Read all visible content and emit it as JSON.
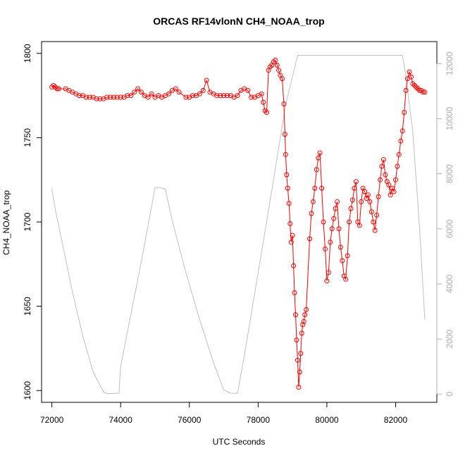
{
  "chart_data": {
    "type": "line",
    "title": "ORCAS RF14vlonN CH4_NOAA_trop",
    "xlabel": "UTC Seconds",
    "ylabel": "CH4_NOAA_trop",
    "xlim": [
      71700,
      83200
    ],
    "ylim": [
      1593,
      1807
    ],
    "y2lim": [
      -300,
      12800
    ],
    "x_ticks": [
      72000,
      74000,
      76000,
      78000,
      80000,
      82000
    ],
    "y_ticks": [
      1600,
      1650,
      1700,
      1750,
      1800
    ],
    "y2_ticks": [
      0,
      2000,
      4000,
      6000,
      8000,
      10000,
      12000
    ],
    "grid": false,
    "series": [
      {
        "color": "#ff0000",
        "axis": "left",
        "marker": "open-circle",
        "points": [
          [
            72000,
            1780
          ],
          [
            72050,
            1781
          ],
          [
            72100,
            1780
          ],
          [
            72150,
            1779
          ],
          [
            72200,
            1779
          ],
          [
            72400,
            1779
          ],
          [
            72500,
            1778
          ],
          [
            72600,
            1777
          ],
          [
            72700,
            1776
          ],
          [
            72800,
            1775
          ],
          [
            72900,
            1775
          ],
          [
            73000,
            1774
          ],
          [
            73100,
            1774
          ],
          [
            73200,
            1774
          ],
          [
            73300,
            1773
          ],
          [
            73400,
            1773
          ],
          [
            73500,
            1773
          ],
          [
            73600,
            1774
          ],
          [
            73700,
            1774
          ],
          [
            73800,
            1774
          ],
          [
            73900,
            1774
          ],
          [
            74000,
            1774
          ],
          [
            74100,
            1774
          ],
          [
            74200,
            1775
          ],
          [
            74300,
            1775
          ],
          [
            74400,
            1777
          ],
          [
            74500,
            1779
          ],
          [
            74600,
            1777
          ],
          [
            74700,
            1775
          ],
          [
            74800,
            1774
          ],
          [
            74900,
            1776
          ],
          [
            75000,
            1774
          ],
          [
            75100,
            1775
          ],
          [
            75200,
            1774
          ],
          [
            75300,
            1775
          ],
          [
            75400,
            1776
          ],
          [
            75500,
            1778
          ],
          [
            75600,
            1779
          ],
          [
            75700,
            1777
          ],
          [
            75900,
            1774
          ],
          [
            76000,
            1774
          ],
          [
            76100,
            1775
          ],
          [
            76200,
            1775
          ],
          [
            76300,
            1776
          ],
          [
            76400,
            1778
          ],
          [
            76500,
            1784
          ],
          [
            76600,
            1777
          ],
          [
            76700,
            1776
          ],
          [
            76800,
            1775
          ],
          [
            76900,
            1775
          ],
          [
            77000,
            1775
          ],
          [
            77100,
            1775
          ],
          [
            77200,
            1775
          ],
          [
            77300,
            1774
          ],
          [
            77400,
            1775
          ],
          [
            77500,
            1778
          ],
          [
            77600,
            1779
          ],
          [
            77700,
            1778
          ],
          [
            77800,
            1774
          ],
          [
            77900,
            1774
          ],
          [
            78000,
            1775
          ],
          [
            78100,
            1776
          ],
          [
            78150,
            1771
          ],
          [
            78200,
            1766
          ],
          [
            78250,
            1765
          ],
          [
            78300,
            1790
          ],
          [
            78350,
            1792
          ],
          [
            78400,
            1793
          ],
          [
            78450,
            1795
          ],
          [
            78500,
            1796
          ],
          [
            78550,
            1793
          ],
          [
            78600,
            1790
          ],
          [
            78650,
            1787
          ],
          [
            78700,
            1785
          ],
          [
            78750,
            1770
          ],
          [
            78780,
            1752
          ],
          [
            78800,
            1740
          ],
          [
            78830,
            1728
          ],
          [
            78860,
            1720
          ],
          [
            78900,
            1711
          ],
          [
            78930,
            1699
          ],
          [
            78960,
            1688
          ],
          [
            79000,
            1692
          ],
          [
            79030,
            1674
          ],
          [
            79060,
            1658
          ],
          [
            79090,
            1645
          ],
          [
            79120,
            1630
          ],
          [
            79150,
            1618
          ],
          [
            79180,
            1602
          ],
          [
            79210,
            1611
          ],
          [
            79240,
            1622
          ],
          [
            79270,
            1634
          ],
          [
            79300,
            1639
          ],
          [
            79330,
            1641
          ],
          [
            79360,
            1645
          ],
          [
            79400,
            1648
          ],
          [
            79500,
            1690
          ],
          [
            79550,
            1705
          ],
          [
            79600,
            1712
          ],
          [
            79650,
            1720
          ],
          [
            79700,
            1731
          ],
          [
            79750,
            1738
          ],
          [
            79800,
            1741
          ],
          [
            79850,
            1720
          ],
          [
            79900,
            1700
          ],
          [
            79950,
            1684
          ],
          [
            80000,
            1665
          ],
          [
            80050,
            1670
          ],
          [
            80100,
            1688
          ],
          [
            80150,
            1696
          ],
          [
            80200,
            1702
          ],
          [
            80250,
            1708
          ],
          [
            80300,
            1712
          ],
          [
            80350,
            1696
          ],
          [
            80400,
            1685
          ],
          [
            80450,
            1677
          ],
          [
            80500,
            1668
          ],
          [
            80550,
            1666
          ],
          [
            80600,
            1680
          ],
          [
            80650,
            1700
          ],
          [
            80700,
            1708
          ],
          [
            80750,
            1713
          ],
          [
            80800,
            1720
          ],
          [
            80850,
            1724
          ],
          [
            80900,
            1700
          ],
          [
            80950,
            1698
          ],
          [
            81000,
            1712
          ],
          [
            81050,
            1720
          ],
          [
            81100,
            1718
          ],
          [
            81150,
            1714
          ],
          [
            81200,
            1716
          ],
          [
            81250,
            1712
          ],
          [
            81300,
            1706
          ],
          [
            81350,
            1700
          ],
          [
            81400,
            1695
          ],
          [
            81450,
            1704
          ],
          [
            81500,
            1715
          ],
          [
            81550,
            1725
          ],
          [
            81600,
            1733
          ],
          [
            81650,
            1737
          ],
          [
            81700,
            1728
          ],
          [
            81750,
            1724
          ],
          [
            81800,
            1722
          ],
          [
            81850,
            1716
          ],
          [
            81900,
            1720
          ],
          [
            81950,
            1718
          ],
          [
            82000,
            1725
          ],
          [
            82050,
            1733
          ],
          [
            82100,
            1740
          ],
          [
            82150,
            1748
          ],
          [
            82200,
            1754
          ],
          [
            82250,
            1765
          ],
          [
            82300,
            1778
          ],
          [
            82350,
            1785
          ],
          [
            82400,
            1789
          ],
          [
            82450,
            1786
          ],
          [
            82500,
            1782
          ],
          [
            82550,
            1781
          ],
          [
            82600,
            1780
          ],
          [
            82650,
            1779
          ],
          [
            82700,
            1778
          ],
          [
            82750,
            1778
          ],
          [
            82800,
            1777
          ],
          [
            82850,
            1777
          ]
        ]
      },
      {
        "color": "#c0c0c0",
        "axis": "right",
        "marker": "none",
        "points": [
          [
            72000,
            7450
          ],
          [
            72100,
            6700
          ],
          [
            72300,
            5500
          ],
          [
            72600,
            3700
          ],
          [
            72900,
            2100
          ],
          [
            73200,
            800
          ],
          [
            73500,
            80
          ],
          [
            73600,
            20
          ],
          [
            73800,
            20
          ],
          [
            73950,
            30
          ],
          [
            74000,
            1000
          ],
          [
            74300,
            2900
          ],
          [
            74600,
            4800
          ],
          [
            74900,
            6800
          ],
          [
            75000,
            7500
          ],
          [
            75100,
            7500
          ],
          [
            75300,
            7450
          ],
          [
            75500,
            6300
          ],
          [
            75900,
            4400
          ],
          [
            76300,
            2700
          ],
          [
            76700,
            1150
          ],
          [
            77000,
            150
          ],
          [
            77200,
            30
          ],
          [
            77400,
            30
          ],
          [
            77600,
            1400
          ],
          [
            78000,
            4400
          ],
          [
            78400,
            7400
          ],
          [
            78800,
            10500
          ],
          [
            79150,
            12300
          ],
          [
            79500,
            12300
          ],
          [
            80200,
            12300
          ],
          [
            81000,
            12300
          ],
          [
            81800,
            12300
          ],
          [
            82200,
            12300
          ],
          [
            82300,
            11500
          ],
          [
            82500,
            9500
          ],
          [
            82700,
            6000
          ],
          [
            82850,
            2700
          ]
        ]
      }
    ]
  }
}
